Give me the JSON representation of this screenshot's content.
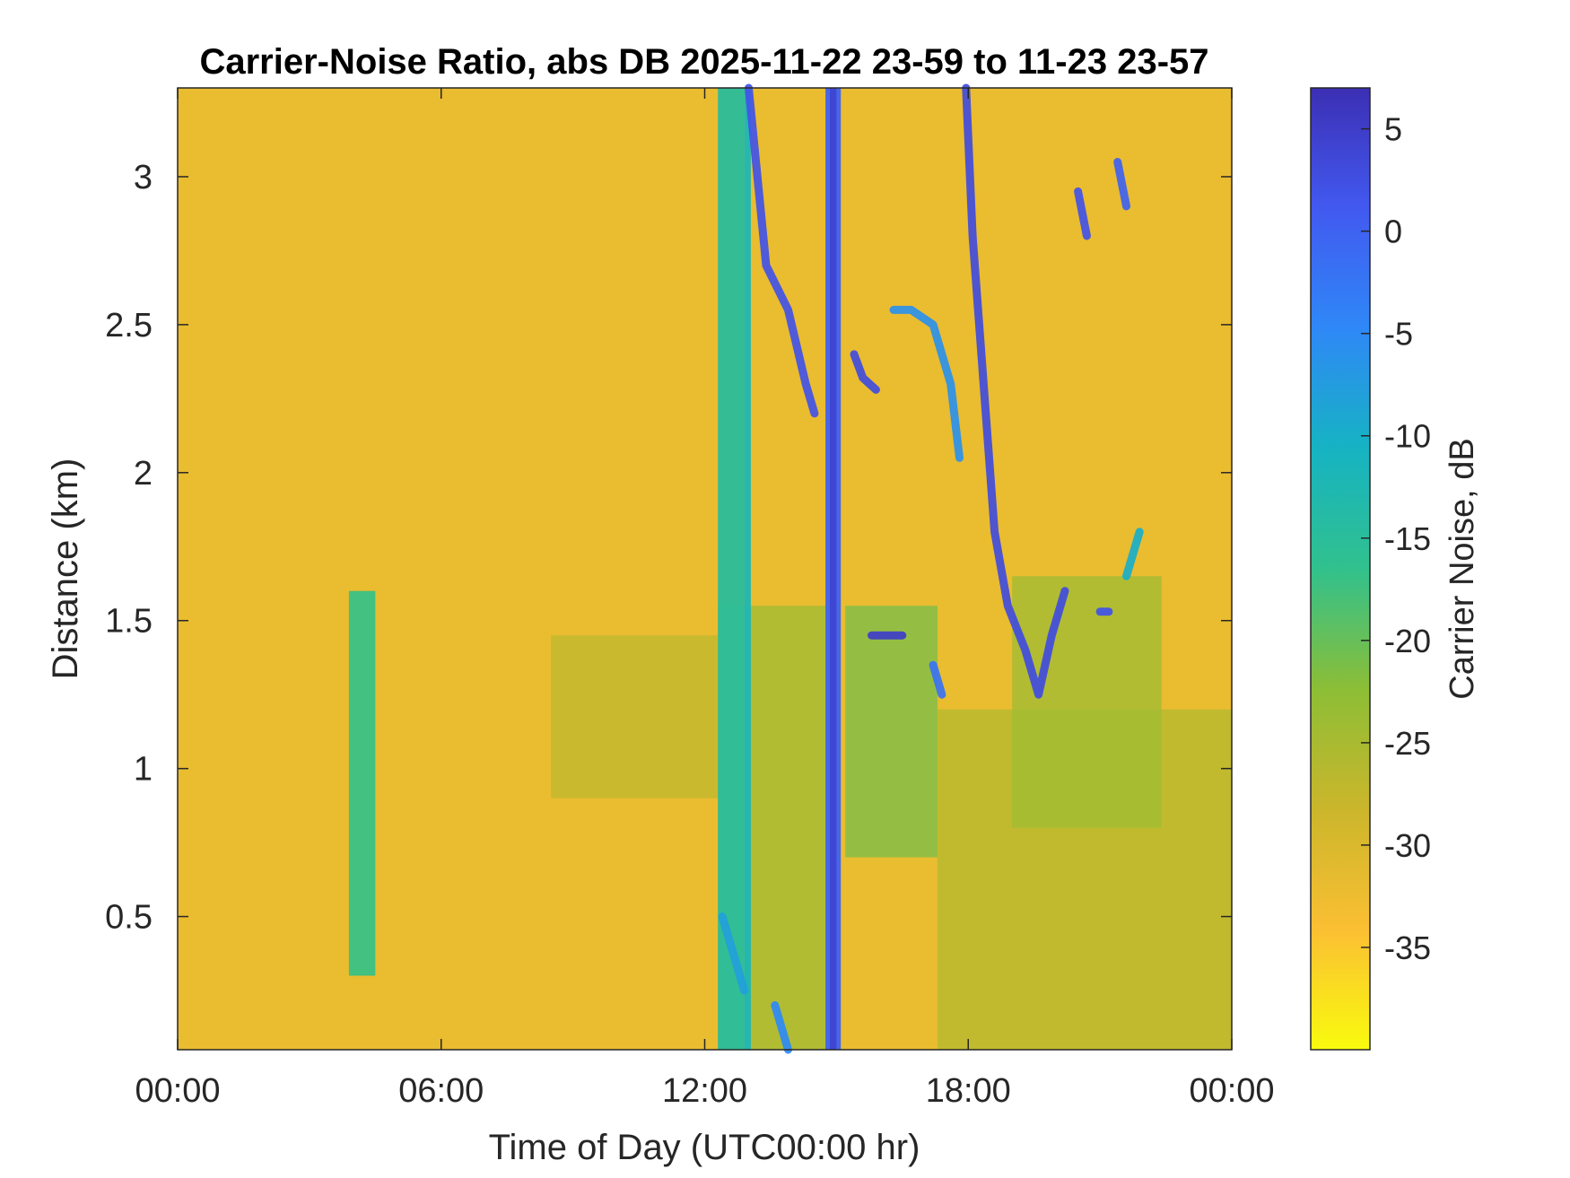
{
  "chart_data": {
    "type": "heatmap",
    "title": "Carrier-Noise Ratio, abs DB 2025-11-22 23-59 to 11-23 23-57",
    "xlabel": "Time of Day (UTC00:00 hr)",
    "ylabel": "Distance (km)",
    "colorbar_label": "Carrier Noise, dB",
    "x_ticks": [
      "00:00",
      "06:00",
      "12:00",
      "18:00",
      "00:00"
    ],
    "x_tick_hours": [
      0,
      6,
      12,
      18,
      24
    ],
    "xlim_hours": [
      0,
      24
    ],
    "y_ticks": [
      "0.5",
      "1",
      "1.5",
      "2",
      "2.5",
      "3"
    ],
    "y_tick_values": [
      0.5,
      1,
      1.5,
      2,
      2.5,
      3
    ],
    "ylim_km": [
      0.05,
      3.3
    ],
    "colorbar_ticks": [
      "5",
      "0",
      "-5",
      "-10",
      "-15",
      "-20",
      "-25",
      "-30",
      "-35"
    ],
    "colorbar_tick_values": [
      5,
      0,
      -5,
      -10,
      -15,
      -20,
      -25,
      -30,
      -35
    ],
    "clim_db": [
      -40,
      7
    ],
    "background_db": -32,
    "colormap": [
      "#f9fb0e",
      "#fbbf33",
      "#cbb62b",
      "#8cbe36",
      "#31c18d",
      "#16b3c3",
      "#2f88f7",
      "#4259f0",
      "#3c2fb4"
    ],
    "features": [
      {
        "kind": "band",
        "t0": 3.9,
        "t1": 4.5,
        "d0": 0.3,
        "d1": 1.6,
        "db": -17
      },
      {
        "kind": "region",
        "t0": 8.5,
        "t1": 12.3,
        "d0": 0.9,
        "d1": 1.45,
        "db": -27
      },
      {
        "kind": "region",
        "t0": 12.3,
        "t1": 15.0,
        "d0": 0.05,
        "d1": 1.55,
        "db": -24
      },
      {
        "kind": "region",
        "t0": 15.2,
        "t1": 17.3,
        "d0": 0.7,
        "d1": 1.55,
        "db": -21
      },
      {
        "kind": "region",
        "t0": 17.3,
        "t1": 24.0,
        "d0": 0.05,
        "d1": 1.2,
        "db": -26
      },
      {
        "kind": "region",
        "t0": 19.0,
        "t1": 22.4,
        "d0": 0.8,
        "d1": 1.65,
        "db": -24
      },
      {
        "kind": "column",
        "t0": 12.3,
        "t1": 12.9,
        "d0": 0.05,
        "d1": 3.3,
        "db": -15
      },
      {
        "kind": "column",
        "t0": 12.9,
        "t1": 13.05,
        "d0": 0.05,
        "d1": 3.3,
        "db": -12
      },
      {
        "kind": "column",
        "t0": 14.75,
        "t1": 15.1,
        "d0": 0.05,
        "d1": 3.3,
        "db": 0
      },
      {
        "kind": "column",
        "t0": 14.85,
        "t1": 15.0,
        "d0": 0.05,
        "d1": 3.3,
        "db": 4
      },
      {
        "kind": "streak",
        "pts": [
          [
            13.0,
            3.3
          ],
          [
            13.4,
            2.7
          ],
          [
            13.9,
            2.55
          ],
          [
            14.3,
            2.3
          ],
          [
            14.5,
            2.2
          ]
        ],
        "db": 2
      },
      {
        "kind": "streak",
        "pts": [
          [
            15.4,
            2.4
          ],
          [
            15.6,
            2.32
          ],
          [
            15.9,
            2.28
          ]
        ],
        "db": 3
      },
      {
        "kind": "streak",
        "pts": [
          [
            16.3,
            2.55
          ],
          [
            16.7,
            2.55
          ],
          [
            17.2,
            2.5
          ],
          [
            17.6,
            2.3
          ],
          [
            17.8,
            2.05
          ]
        ],
        "db": -6
      },
      {
        "kind": "streak",
        "pts": [
          [
            17.95,
            3.3
          ],
          [
            18.1,
            2.8
          ],
          [
            18.4,
            2.2
          ],
          [
            18.6,
            1.8
          ],
          [
            18.9,
            1.55
          ],
          [
            19.3,
            1.4
          ],
          [
            19.6,
            1.25
          ],
          [
            19.9,
            1.45
          ],
          [
            20.2,
            1.6
          ]
        ],
        "db": 3
      },
      {
        "kind": "streak",
        "pts": [
          [
            15.8,
            1.45
          ],
          [
            16.2,
            1.45
          ],
          [
            16.5,
            1.45
          ]
        ],
        "db": 5
      },
      {
        "kind": "streak",
        "pts": [
          [
            20.5,
            2.95
          ],
          [
            20.7,
            2.8
          ]
        ],
        "db": 2
      },
      {
        "kind": "streak",
        "pts": [
          [
            21.4,
            3.05
          ],
          [
            21.6,
            2.9
          ]
        ],
        "db": 0
      },
      {
        "kind": "streak",
        "pts": [
          [
            21.0,
            1.53
          ],
          [
            21.2,
            1.53
          ]
        ],
        "db": 2
      },
      {
        "kind": "streak",
        "pts": [
          [
            21.6,
            1.65
          ],
          [
            21.9,
            1.8
          ]
        ],
        "db": -10
      },
      {
        "kind": "streak",
        "pts": [
          [
            12.4,
            0.5
          ],
          [
            12.7,
            0.35
          ],
          [
            12.9,
            0.25
          ]
        ],
        "db": -8
      },
      {
        "kind": "streak",
        "pts": [
          [
            13.6,
            0.2
          ],
          [
            13.9,
            0.05
          ]
        ],
        "db": -5
      },
      {
        "kind": "streak",
        "pts": [
          [
            17.2,
            1.35
          ],
          [
            17.4,
            1.25
          ]
        ],
        "db": -2
      }
    ]
  }
}
